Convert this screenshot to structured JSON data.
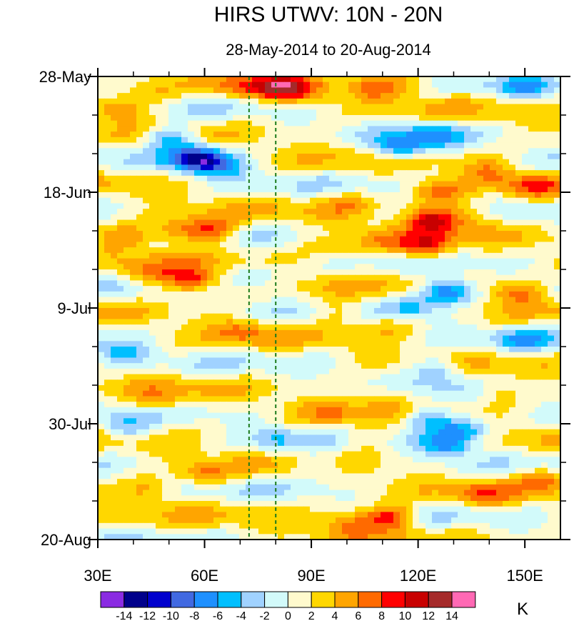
{
  "chart_data": {
    "type": "heatmap",
    "title": "HIRS UTWV: 10N - 20N",
    "subtitle": "28-May-2014 to 20-Aug-2014",
    "xlabel": "",
    "ylabel": "",
    "x_range": [
      30,
      160
    ],
    "y_range_days": [
      0,
      84
    ],
    "x_ticks": [
      {
        "value": 30,
        "label": "30E"
      },
      {
        "value": 60,
        "label": "60E"
      },
      {
        "value": 90,
        "label": "90E"
      },
      {
        "value": 120,
        "label": "120E"
      },
      {
        "value": 150,
        "label": "150E"
      }
    ],
    "y_ticks": [
      {
        "day": 0,
        "label": "28-May"
      },
      {
        "day": 21,
        "label": "18-Jun"
      },
      {
        "day": 42,
        "label": "9-Jul"
      },
      {
        "day": 63,
        "label": "30-Jul"
      },
      {
        "day": 84,
        "label": "20-Aug"
      }
    ],
    "reference_lines_lon": [
      72.5,
      80
    ],
    "colorbar": {
      "unit": "K",
      "levels": [
        "-14",
        "-12",
        "-10",
        "-8",
        "-6",
        "-4",
        "-2",
        "0",
        "2",
        "4",
        "6",
        "8",
        "10",
        "12",
        "14"
      ],
      "colors": [
        "#8a2be2",
        "#00008b",
        "#0000cd",
        "#4169e1",
        "#1e90ff",
        "#00bfff",
        "#a0d2ff",
        "#d2fafa",
        "#fffacd",
        "#ffd700",
        "#ffa500",
        "#ff6a00",
        "#ff0000",
        "#c80000",
        "#a52a2a",
        "#ff69b4"
      ]
    },
    "features": [
      {
        "lon": 37,
        "day": 6,
        "value": 7
      },
      {
        "lon": 45,
        "day": 3,
        "value": 4
      },
      {
        "lon": 50,
        "day": 11,
        "value": -7
      },
      {
        "lon": 58,
        "day": 15,
        "value": -11
      },
      {
        "lon": 65,
        "day": 16,
        "value": -5
      },
      {
        "lon": 52,
        "day": 28,
        "value": 7
      },
      {
        "lon": 62,
        "day": 28,
        "value": 9
      },
      {
        "lon": 38,
        "day": 29,
        "value": 6
      },
      {
        "lon": 56,
        "day": 37,
        "value": 10
      },
      {
        "lon": 44,
        "day": 36,
        "value": 6
      },
      {
        "lon": 70,
        "day": 2,
        "value": 5
      },
      {
        "lon": 81,
        "day": 2,
        "value": 9
      },
      {
        "lon": 88,
        "day": 3,
        "value": 5
      },
      {
        "lon": 108,
        "day": 2,
        "value": 6
      },
      {
        "lon": 118,
        "day": 1,
        "value": 4
      },
      {
        "lon": 115,
        "day": 13,
        "value": -7
      },
      {
        "lon": 125,
        "day": 11,
        "value": -5
      },
      {
        "lon": 150,
        "day": 2,
        "value": -4
      },
      {
        "lon": 140,
        "day": 17,
        "value": 5
      },
      {
        "lon": 125,
        "day": 21,
        "value": 7
      },
      {
        "lon": 124,
        "day": 26,
        "value": 10
      },
      {
        "lon": 135,
        "day": 25,
        "value": 6
      },
      {
        "lon": 122,
        "day": 31,
        "value": 9
      },
      {
        "lon": 108,
        "day": 30,
        "value": 5
      },
      {
        "lon": 95,
        "day": 31,
        "value": 4
      },
      {
        "lon": 100,
        "day": 23,
        "value": 4
      },
      {
        "lon": 128,
        "day": 39,
        "value": -10
      },
      {
        "lon": 118,
        "day": 42,
        "value": -4
      },
      {
        "lon": 148,
        "day": 39,
        "value": 7
      },
      {
        "lon": 112,
        "day": 45,
        "value": 4
      },
      {
        "lon": 98,
        "day": 43,
        "value": 5
      },
      {
        "lon": 125,
        "day": 53,
        "value": -5
      },
      {
        "lon": 142,
        "day": 57,
        "value": 4
      },
      {
        "lon": 122,
        "day": 62,
        "value": -6
      },
      {
        "lon": 133,
        "day": 64,
        "value": -6
      },
      {
        "lon": 128,
        "day": 67,
        "value": -6
      },
      {
        "lon": 110,
        "day": 58,
        "value": 5
      },
      {
        "lon": 95,
        "day": 61,
        "value": 4
      },
      {
        "lon": 47,
        "day": 59,
        "value": 5
      },
      {
        "lon": 38,
        "day": 64,
        "value": -4
      },
      {
        "lon": 60,
        "day": 72,
        "value": 6
      },
      {
        "lon": 45,
        "day": 75,
        "value": 5
      },
      {
        "lon": 112,
        "day": 80,
        "value": 10
      },
      {
        "lon": 100,
        "day": 81,
        "value": 6
      },
      {
        "lon": 138,
        "day": 76,
        "value": 5
      },
      {
        "lon": 155,
        "day": 73,
        "value": 6
      },
      {
        "lon": 152,
        "day": 20,
        "value": 6
      },
      {
        "lon": 75,
        "day": 36,
        "value": -3
      },
      {
        "lon": 36,
        "day": 50,
        "value": -4
      },
      {
        "lon": 70,
        "day": 46,
        "value": 5
      },
      {
        "lon": 80,
        "day": 66,
        "value": -3
      },
      {
        "lon": 93,
        "day": 71,
        "value": -3
      },
      {
        "lon": 150,
        "day": 48,
        "value": -4
      },
      {
        "lon": 105,
        "day": 66,
        "value": 4
      }
    ]
  }
}
